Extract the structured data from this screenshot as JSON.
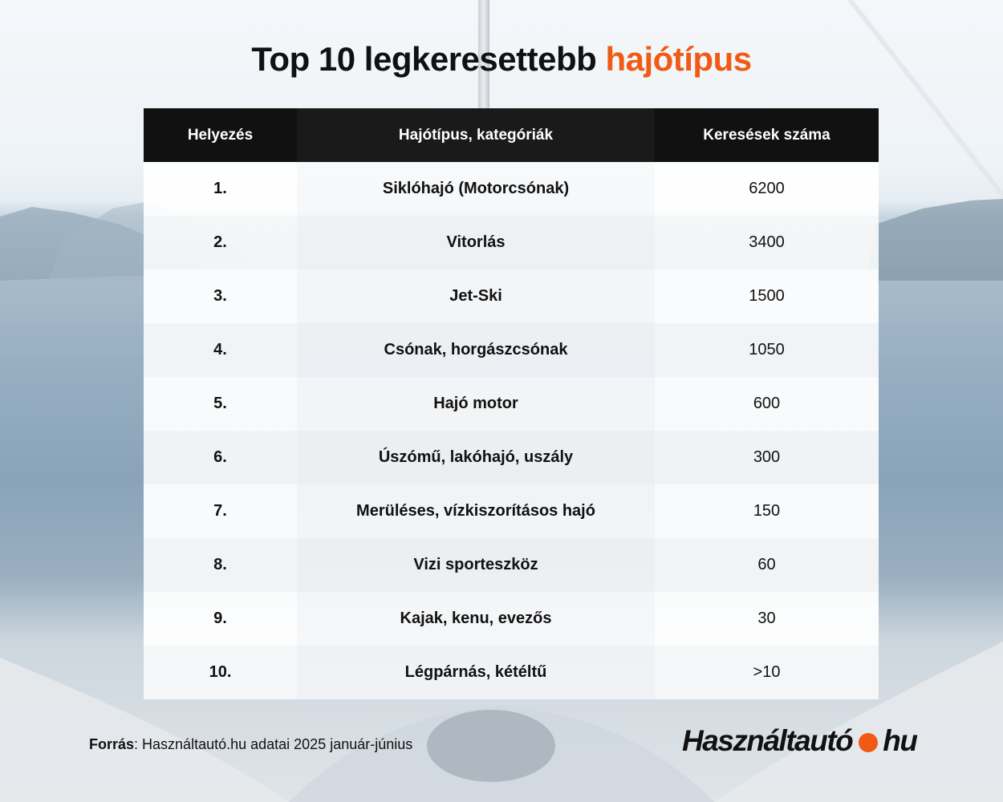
{
  "title": {
    "main": "Top 10 legkeresettebb ",
    "accent": "hajótípus"
  },
  "colors": {
    "accent": "#f05a14",
    "header_bg": "#111111"
  },
  "chart_data": {
    "type": "table",
    "columns": [
      "Helyezés",
      "Hajótípus, kategóriák",
      "Keresések száma"
    ],
    "rows": [
      {
        "rank": "1.",
        "category": "Siklóhajó (Motorcsónak)",
        "searches": "6200"
      },
      {
        "rank": "2.",
        "category": "Vitorlás",
        "searches": "3400"
      },
      {
        "rank": "3.",
        "category": "Jet-Ski",
        "searches": "1500"
      },
      {
        "rank": "4.",
        "category": "Csónak, horgászcsónak",
        "searches": "1050"
      },
      {
        "rank": "5.",
        "category": "Hajó motor",
        "searches": "600"
      },
      {
        "rank": "6.",
        "category": "Úszómű, lakóhajó, uszály",
        "searches": "300"
      },
      {
        "rank": "7.",
        "category": "Merüléses, vízkiszorításos hajó",
        "searches": "150"
      },
      {
        "rank": "8.",
        "category": "Vizi sporteszköz",
        "searches": "60"
      },
      {
        "rank": "9.",
        "category": "Kajak, kenu, evezős",
        "searches": "30"
      },
      {
        "rank": "10.",
        "category": "Légpárnás, kétéltű",
        "searches": ">10"
      }
    ]
  },
  "source": {
    "label": "Forrás",
    "text": ": Használtautó.hu adatai 2025 január-június"
  },
  "logo": {
    "left": "Használtautó",
    "right": "hu"
  }
}
